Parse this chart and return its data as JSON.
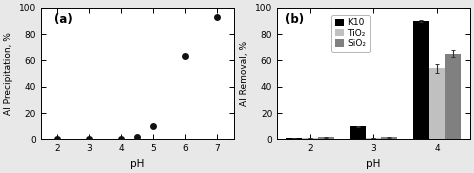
{
  "panel_a": {
    "label": "(a)",
    "xlabel": "pH",
    "ylabel": "Al Precipitation, %",
    "ylim": [
      0,
      100
    ],
    "xlim": [
      1.5,
      7.5
    ],
    "xticks": [
      2,
      3,
      4,
      5,
      6,
      7
    ],
    "yticks": [
      0,
      20,
      40,
      60,
      80,
      100
    ],
    "scatter_x": [
      2,
      3,
      4,
      4.5,
      5,
      6,
      7
    ],
    "scatter_y": [
      0.3,
      0.3,
      0.5,
      1.8,
      10,
      63,
      93
    ],
    "marker": "o",
    "marker_color": "#111111",
    "marker_size": 5
  },
  "panel_b": {
    "label": "(b)",
    "xlabel": "pH",
    "ylabel": "Al Removal, %",
    "ylim": [
      0,
      100
    ],
    "yticks": [
      0,
      20,
      40,
      60,
      80,
      100
    ],
    "ph_groups": [
      2,
      3,
      4
    ],
    "xtick_labels": [
      "2",
      "3",
      "4"
    ],
    "series": [
      "K10",
      "TiO₂",
      "SiO₂"
    ],
    "colors": [
      "#000000",
      "#c0c0c0",
      "#808080"
    ],
    "values": [
      [
        1.0,
        1.0,
        1.5
      ],
      [
        10.0,
        1.0,
        1.5
      ],
      [
        90.0,
        54.0,
        65.0
      ]
    ],
    "errors": [
      [
        0.2,
        0.2,
        0.2
      ],
      [
        0.3,
        0.2,
        0.2
      ],
      [
        1.0,
        3.5,
        2.5
      ]
    ],
    "bar_width": 0.25,
    "legend_fontsize": 6.5
  },
  "fig_bgcolor": "#e8e8e8",
  "axes_bgcolor": "#ffffff"
}
